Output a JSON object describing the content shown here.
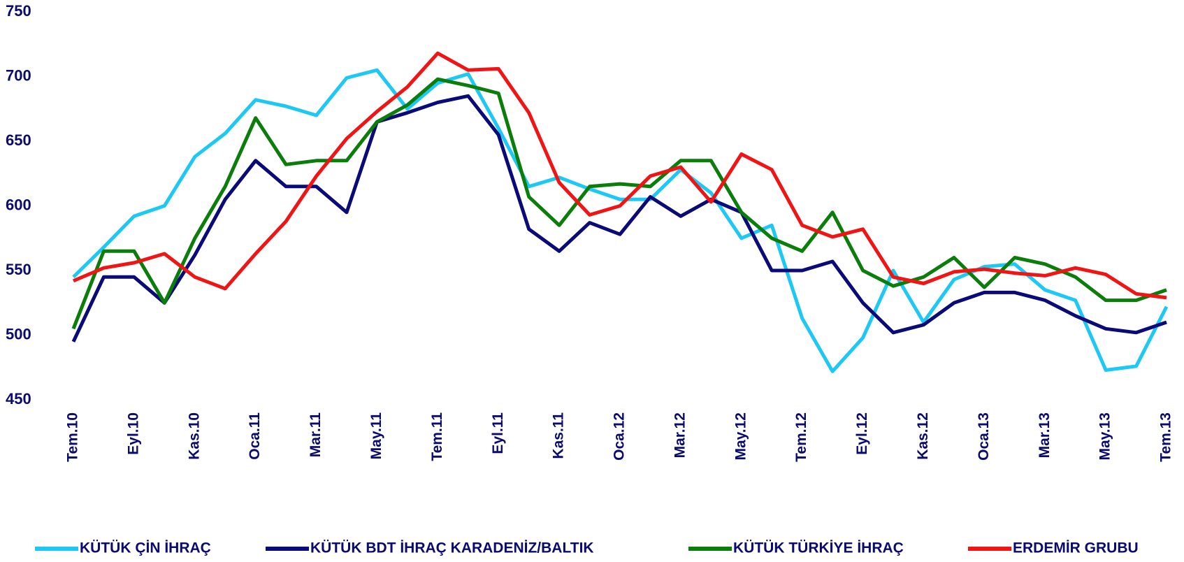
{
  "chart_data": {
    "type": "line",
    "categories": [
      "Tem.10",
      null,
      "Eyl.10",
      null,
      "Kas.10",
      null,
      "Oca.11",
      null,
      "Mar.11",
      null,
      "May.11",
      null,
      "Tem.11",
      null,
      "Eyl.11",
      null,
      "Kas.11",
      null,
      "Oca.12",
      null,
      "Mar.12",
      null,
      "May.12",
      null,
      "Tem.12",
      null,
      "Eyl.12",
      null,
      "Kas.12",
      null,
      "Oca.13",
      null,
      "Mar.13",
      null,
      "May.13",
      null,
      "Tem.13"
    ],
    "series": [
      {
        "name": "KÜTÜK ÇİN İHRAÇ",
        "color": "#1ec8f5",
        "values": [
          545,
          568,
          592,
          600,
          638,
          656,
          682,
          677,
          670,
          699,
          705,
          675,
          695,
          702,
          660,
          615,
          622,
          613,
          605,
          605,
          628,
          610,
          575,
          585,
          513,
          472,
          498,
          550,
          510,
          543,
          553,
          555,
          535,
          527,
          473,
          476,
          522
        ]
      },
      {
        "name": "KÜTÜK BDT İHRAÇ KARADENİZ/BALTIK",
        "color": "#0a0a78",
        "values": [
          495,
          545,
          545,
          525,
          562,
          605,
          635,
          615,
          615,
          595,
          665,
          672,
          680,
          685,
          655,
          582,
          565,
          587,
          578,
          607,
          592,
          605,
          595,
          550,
          550,
          557,
          525,
          502,
          508,
          525,
          533,
          533,
          527,
          515,
          505,
          502,
          510
        ]
      },
      {
        "name": "KÜTÜK TÜRKİYE İHRAÇ",
        "color": "#0a7d0a",
        "values": [
          505,
          565,
          565,
          525,
          575,
          615,
          668,
          632,
          635,
          635,
          665,
          678,
          698,
          693,
          687,
          607,
          585,
          615,
          617,
          615,
          635,
          635,
          595,
          575,
          565,
          595,
          550,
          538,
          545,
          560,
          537,
          560,
          555,
          545,
          527,
          527,
          535
        ]
      },
      {
        "name": "ERDEMİR GRUBU",
        "color": "#f01414",
        "values": [
          542,
          552,
          556,
          563,
          545,
          536,
          563,
          588,
          623,
          652,
          673,
          692,
          718,
          705,
          706,
          672,
          618,
          593,
          600,
          623,
          630,
          603,
          640,
          628,
          585,
          576,
          582,
          545,
          540,
          549,
          551,
          548,
          546,
          552,
          547,
          532,
          529
        ]
      }
    ],
    "ylim": [
      450,
      750
    ],
    "yticks": [
      450,
      500,
      550,
      600,
      650,
      700,
      750
    ],
    "legend": "bottom"
  }
}
